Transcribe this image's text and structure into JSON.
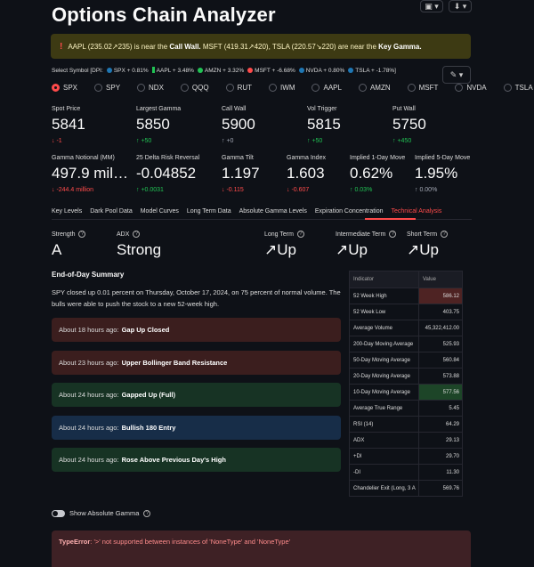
{
  "top_buttons": [
    "▣ ▾",
    "⬇ ▾"
  ],
  "title": "Options Chain Analyzer",
  "alert": {
    "icon": "!",
    "part1": "AAPL (235.02↗235) is near the",
    "b1": "Call Wall.",
    "part2": "MSFT (419.31↗420), TSLA (220.57↘220) are near the",
    "b2": "Key Gamma."
  },
  "select_symbol": {
    "label": "Select Symbol [DPI:",
    "items": [
      {
        "text": "SPX + 0.81%",
        "color": "#1f77b4",
        "shape": "dot"
      },
      {
        "text": "AAPL + 3.48%",
        "color": "#21c354",
        "shape": "sq"
      },
      {
        "text": "AMZN + 3.32%",
        "color": "#21c354",
        "shape": "dot"
      },
      {
        "text": "MSFT + -6.68%",
        "color": "#ff4b4b",
        "shape": "dot"
      },
      {
        "text": "NVDA + 0.80%",
        "color": "#1f77b4",
        "shape": "dot"
      },
      {
        "text": "TSLA + -1.78%]",
        "color": "#1f77b4",
        "shape": "dot"
      }
    ],
    "edit_label": "✎ ▾"
  },
  "symbols": [
    "SPX",
    "SPY",
    "NDX",
    "QQQ",
    "RUT",
    "IWM",
    "AAPL",
    "AMZN",
    "MSFT",
    "NVDA",
    "TSLA"
  ],
  "selected_symbol": "SPX",
  "metrics_row1": [
    {
      "label": "Spot Price",
      "value": "5841",
      "delta": "-1",
      "dir": "down"
    },
    {
      "label": "Largest Gamma",
      "value": "5850",
      "delta": "+50",
      "dir": "up"
    },
    {
      "label": "Call Wall",
      "value": "5900",
      "delta": "+0",
      "dir": "up-grey"
    },
    {
      "label": "Vol Trigger",
      "value": "5815",
      "delta": "+50",
      "dir": "up"
    },
    {
      "label": "Put Wall",
      "value": "5750",
      "delta": "+450",
      "dir": "up"
    }
  ],
  "metrics_row2": [
    {
      "label": "Gamma Notional (MM)",
      "value": "497.9 mil…",
      "delta": "-244.4 million",
      "dir": "down"
    },
    {
      "label": "25 Delta Risk Reversal",
      "value": "-0.04852",
      "delta": "+0.0031",
      "dir": "up"
    },
    {
      "label": "Gamma Tilt",
      "value": "1.197",
      "delta": "-0.115",
      "dir": "down"
    },
    {
      "label": "Gamma Index",
      "value": "1.603",
      "delta": "-0.607",
      "dir": "down"
    },
    {
      "label": "Implied 1-Day Move",
      "value": "0.62%",
      "delta": "0.03%",
      "dir": "up"
    },
    {
      "label": "Implied 5-Day Move",
      "value": "1.95%",
      "delta": "0.00%",
      "dir": "up-grey"
    }
  ],
  "tabs": [
    "Key Levels",
    "Dark Pool Data",
    "Model Curves",
    "Long Term Data",
    "Absolute Gamma Levels",
    "Expiration Concentration",
    "Technical Analysis"
  ],
  "active_tab": "Technical Analysis",
  "tech": [
    {
      "label": "Strength",
      "value": "A"
    },
    {
      "label": "ADX",
      "value": "Strong"
    },
    {
      "label": "Long Term",
      "value": "↗Up"
    },
    {
      "label": "Intermediate Term",
      "value": "↗Up"
    },
    {
      "label": "Short Term",
      "value": "↗Up"
    }
  ],
  "summary": {
    "title": "End-of-Day Summary",
    "text": "SPY closed up 0.01 percent on Thursday, October 17, 2024, on 75 percent of normal volume. The bulls were able to push the stock to a new 52-week high."
  },
  "events": [
    {
      "time": "About 18 hours ago:",
      "title": "Gap Up Closed",
      "color": "red"
    },
    {
      "time": "About 23 hours ago:",
      "title": "Upper Bollinger Band Resistance",
      "color": "red"
    },
    {
      "time": "About 24 hours ago:",
      "title": "Gapped Up (Full)",
      "color": "green"
    },
    {
      "time": "About 24 hours ago:",
      "title": "Bullish 180 Entry",
      "color": "blue"
    },
    {
      "time": "About 24 hours ago:",
      "title": "Rose Above Previous Day's High",
      "color": "green"
    }
  ],
  "indicator_table": {
    "headers": [
      "Indicator",
      "Value"
    ],
    "rows": [
      {
        "name": "52 Week High",
        "value": "586.12",
        "hl": "red"
      },
      {
        "name": "52 Week Low",
        "value": "403.75",
        "hl": ""
      },
      {
        "name": "Average Volume",
        "value": "45,322,412.00",
        "hl": ""
      },
      {
        "name": "200-Day Moving Average",
        "value": "525.93",
        "hl": ""
      },
      {
        "name": "50-Day Moving Average",
        "value": "560.84",
        "hl": ""
      },
      {
        "name": "20-Day Moving Average",
        "value": "573.88",
        "hl": ""
      },
      {
        "name": "10-Day Moving Average",
        "value": "577.56",
        "hl": "green"
      },
      {
        "name": "Average True Range",
        "value": "5.45",
        "hl": ""
      },
      {
        "name": "RSI (14)",
        "value": "64.29",
        "hl": ""
      },
      {
        "name": "ADX",
        "value": "29.13",
        "hl": ""
      },
      {
        "name": "+DI",
        "value": "29.70",
        "hl": ""
      },
      {
        "name": "-DI",
        "value": "11.30",
        "hl": ""
      },
      {
        "name": "Chandelier Exit (Long, 3 A",
        "value": "569.76",
        "hl": ""
      }
    ]
  },
  "toggle_label": "Show Absolute Gamma",
  "error": {
    "type": "TypeError",
    "message": ": '>' not supported between instances of 'NoneType' and 'NoneType'"
  }
}
